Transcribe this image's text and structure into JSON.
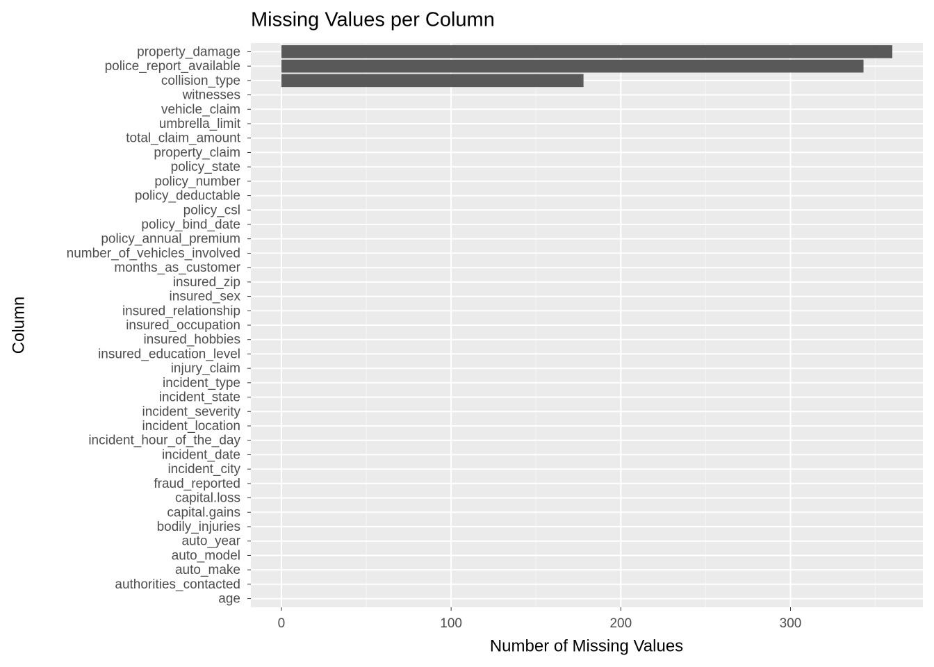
{
  "chart_data": {
    "type": "bar",
    "orientation": "horizontal",
    "title": "Missing Values per Column",
    "x_label": "Number of Missing Values",
    "y_label": "Column",
    "categories": [
      "property_damage",
      "police_report_available",
      "collision_type",
      "witnesses",
      "vehicle_claim",
      "umbrella_limit",
      "total_claim_amount",
      "property_claim",
      "policy_state",
      "policy_number",
      "policy_deductable",
      "policy_csl",
      "policy_bind_date",
      "policy_annual_premium",
      "number_of_vehicles_involved",
      "months_as_customer",
      "insured_zip",
      "insured_sex",
      "insured_relationship",
      "insured_occupation",
      "insured_hobbies",
      "insured_education_level",
      "injury_claim",
      "incident_type",
      "incident_state",
      "incident_severity",
      "incident_location",
      "incident_hour_of_the_day",
      "incident_date",
      "incident_city",
      "fraud_reported",
      "capital.loss",
      "capital.gains",
      "bodily_injuries",
      "auto_year",
      "auto_model",
      "auto_make",
      "authorities_contacted",
      "age"
    ],
    "values": [
      360,
      343,
      178,
      0,
      0,
      0,
      0,
      0,
      0,
      0,
      0,
      0,
      0,
      0,
      0,
      0,
      0,
      0,
      0,
      0,
      0,
      0,
      0,
      0,
      0,
      0,
      0,
      0,
      0,
      0,
      0,
      0,
      0,
      0,
      0,
      0,
      0,
      0,
      0
    ],
    "color": "#595959",
    "xlim": [
      -18,
      378
    ],
    "xticks": [
      0,
      100,
      200,
      300
    ],
    "grid": true
  }
}
